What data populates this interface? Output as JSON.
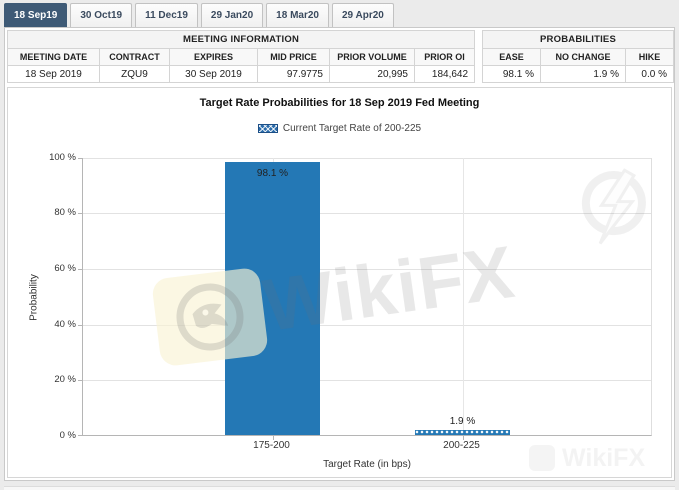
{
  "tabs": [
    {
      "label": "18 Sep19",
      "selected": true
    },
    {
      "label": "30 Oct19",
      "selected": false
    },
    {
      "label": "11 Dec19",
      "selected": false
    },
    {
      "label": "29 Jan20",
      "selected": false
    },
    {
      "label": "18 Mar20",
      "selected": false
    },
    {
      "label": "29 Apr20",
      "selected": false
    }
  ],
  "meeting_information": {
    "title": "MEETING INFORMATION",
    "columns": [
      "MEETING DATE",
      "CONTRACT",
      "EXPIRES",
      "MID PRICE",
      "PRIOR VOLUME",
      "PRIOR OI"
    ],
    "row": {
      "meeting_date": "18 Sep 2019",
      "contract": "ZQU9",
      "expires": "30 Sep 2019",
      "mid_price": "97.9775",
      "prior_volume": "20,995",
      "prior_oi": "184,642"
    }
  },
  "probabilities": {
    "title": "PROBABILITIES",
    "columns": [
      "EASE",
      "NO CHANGE",
      "HIKE"
    ],
    "row": {
      "ease": "98.1 %",
      "no_change": "1.9 %",
      "hike": "0.0 %"
    }
  },
  "chart_data": {
    "type": "bar",
    "title": "Target Rate Probabilities for 18 Sep 2019 Fed Meeting",
    "legend": [
      {
        "label": "Current Target Rate of 200-225",
        "swatch": "blue-crosshatch"
      }
    ],
    "legend_position": "top",
    "categories": [
      "175-200",
      "200-225"
    ],
    "values": [
      98.1,
      1.9
    ],
    "value_labels": [
      "98.1 %",
      "1.9 %"
    ],
    "hatched": [
      false,
      true
    ],
    "xlabel": "Target Rate (in bps)",
    "ylabel": "Probability",
    "ylim": [
      0,
      100
    ],
    "ytick_labels": [
      "100 %",
      "80 %",
      "60 %",
      "40 %",
      "20 %",
      "0 %"
    ],
    "grid": true,
    "bar_color": "#2478b5"
  },
  "watermarks": {
    "center_text": "WikiFX",
    "bottom_right_text": "WikiFX"
  },
  "colors": {
    "selected_tab_bg": "#3e5a76",
    "bar_blue": "#2478b5",
    "panel_border": "#c9c9c9",
    "grid_line": "#e2e2e2"
  }
}
